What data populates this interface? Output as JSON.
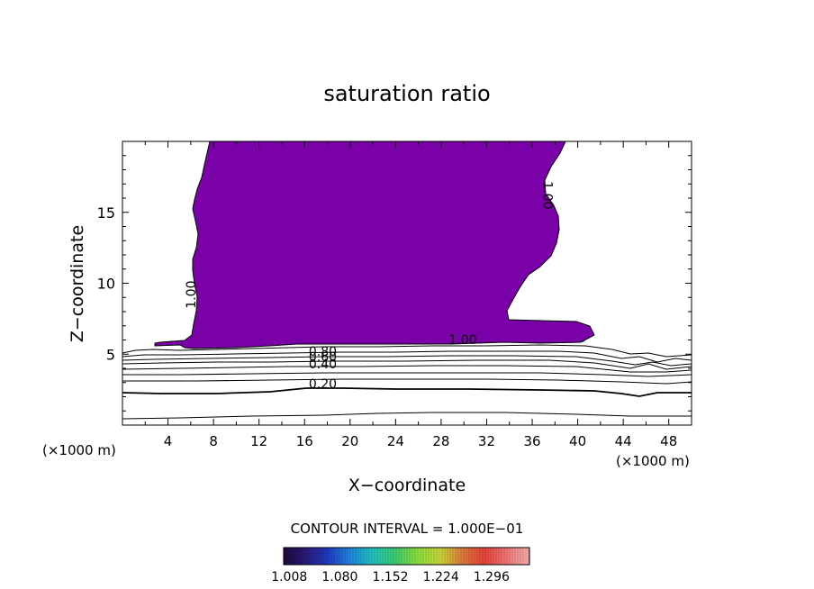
{
  "chart_data": {
    "type": "contour",
    "title": "saturation ratio",
    "xlabel": "X−coordinate",
    "ylabel": "Z−coordinate",
    "x_unit_label": "(×1000 m)",
    "y_unit_label": "(×1000 m)",
    "xlim": [
      0,
      50
    ],
    "ylim": [
      0,
      20
    ],
    "x_ticks": [
      4,
      8,
      12,
      16,
      20,
      24,
      28,
      32,
      36,
      40,
      44,
      48
    ],
    "y_ticks": [
      5,
      10,
      15
    ],
    "contour_labels": [
      {
        "text": "1.00",
        "x": 6.4,
        "z": 9.2,
        "rotation": -90
      },
      {
        "text": "1.00",
        "x": 37.0,
        "z": 16.2,
        "rotation": 90
      },
      {
        "text": "1.00",
        "x": 29.9,
        "z": 5.7,
        "rotation": 0
      },
      {
        "text": "0.80",
        "x": 17.6,
        "z": 4.9,
        "rotation": 0
      },
      {
        "text": "0.60",
        "x": 17.6,
        "z": 4.5,
        "rotation": 0
      },
      {
        "text": "0.40",
        "x": 17.6,
        "z": 4.0,
        "rotation": 0
      },
      {
        "text": "0.20",
        "x": 17.6,
        "z": 2.6,
        "rotation": 0
      }
    ],
    "contour_interval_text": "CONTOUR INTERVAL = 1.000E−01",
    "colorbar": {
      "min": 1.0,
      "max": 1.35,
      "tick_labels": [
        "1.008",
        "1.080",
        "1.152",
        "1.224",
        "1.296"
      ],
      "colors": [
        "#1e0a3c",
        "#2a1a7a",
        "#1f3cc4",
        "#1e8ae0",
        "#22c4c0",
        "#3ccf6e",
        "#8ee03c",
        "#c9d83a",
        "#e07a3a",
        "#e8443a",
        "#f07a78",
        "#f5b0b0"
      ]
    },
    "fill_colors": {
      "supersaturated_region": "#7a00a8",
      "high_values": "#e8443a",
      "mid_values": "#3ccf6e",
      "low_values": "#1f3cc4"
    },
    "subsaturated_contour_levels": [
      0.2,
      0.4,
      0.6,
      0.8,
      1.0
    ]
  }
}
